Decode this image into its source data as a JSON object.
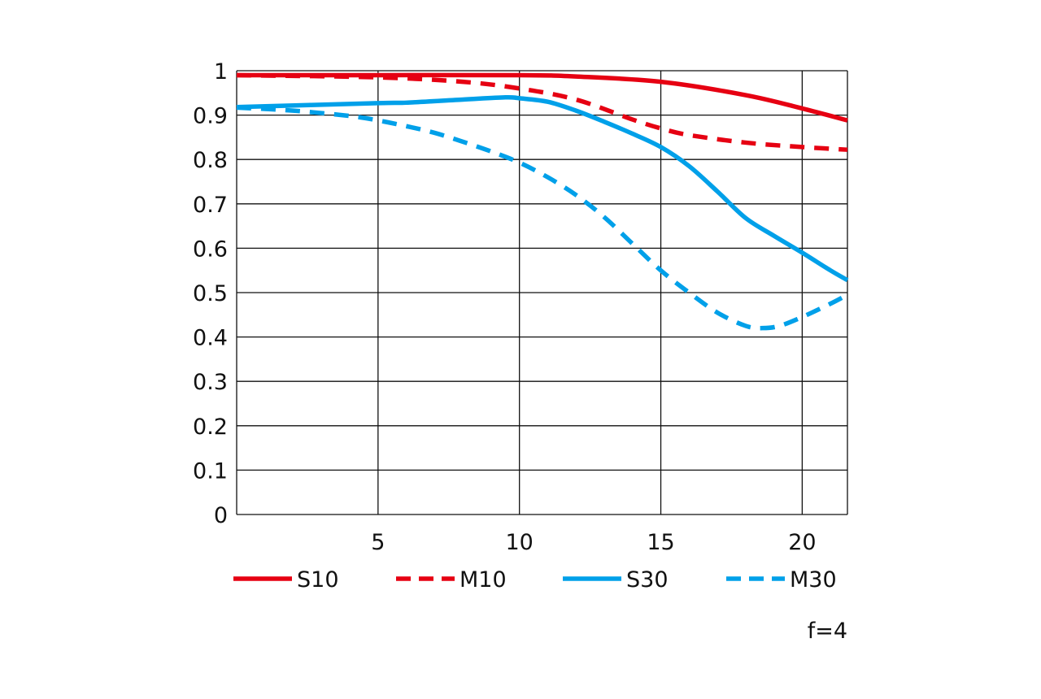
{
  "chart_data": {
    "type": "line",
    "title": "",
    "annotation": "f=4",
    "xlim": [
      0,
      21.6
    ],
    "ylim": [
      0,
      1
    ],
    "grid": true,
    "legend_position": "bottom",
    "x_ticks": [
      5,
      10,
      15,
      20
    ],
    "x_tick_labels": [
      "5",
      "10",
      "15",
      "20"
    ],
    "y_ticks": [
      0,
      0.1,
      0.2,
      0.3,
      0.4,
      0.5,
      0.6,
      0.7,
      0.8,
      0.9,
      1
    ],
    "y_tick_labels": [
      "0",
      "0.1",
      "0.2",
      "0.3",
      "0.4",
      "0.5",
      "0.6",
      "0.7",
      "0.8",
      "0.9",
      "1"
    ],
    "series": [
      {
        "name": "S10",
        "color": "#e60012",
        "dashed": false,
        "x": [
          0,
          5,
          10,
          12,
          15,
          18,
          20,
          21.6
        ],
        "y": [
          0.99,
          0.99,
          0.99,
          0.987,
          0.975,
          0.945,
          0.915,
          0.888
        ]
      },
      {
        "name": "M10",
        "color": "#e60012",
        "dashed": true,
        "x": [
          0,
          5,
          8,
          10,
          12,
          14,
          15,
          16,
          18,
          20,
          21.6
        ],
        "y": [
          0.99,
          0.985,
          0.975,
          0.96,
          0.935,
          0.89,
          0.87,
          0.855,
          0.838,
          0.828,
          0.822
        ]
      },
      {
        "name": "S30",
        "color": "#00a0e9",
        "dashed": false,
        "x": [
          0,
          5,
          6,
          8,
          9.5,
          10,
          11,
          12,
          13,
          14,
          15,
          16,
          17,
          18,
          19,
          20,
          21,
          21.6
        ],
        "y": [
          0.918,
          0.927,
          0.928,
          0.935,
          0.94,
          0.938,
          0.93,
          0.91,
          0.885,
          0.858,
          0.828,
          0.785,
          0.728,
          0.668,
          0.628,
          0.59,
          0.55,
          0.528
        ]
      },
      {
        "name": "M30",
        "color": "#00a0e9",
        "dashed": true,
        "x": [
          0,
          2,
          4,
          5,
          6,
          7,
          8,
          9,
          10,
          11,
          12,
          13,
          14,
          15,
          16,
          17,
          18,
          18.6,
          19.2,
          20,
          21,
          21.6
        ],
        "y": [
          0.917,
          0.91,
          0.898,
          0.888,
          0.875,
          0.86,
          0.84,
          0.818,
          0.793,
          0.76,
          0.72,
          0.67,
          0.61,
          0.55,
          0.5,
          0.455,
          0.425,
          0.42,
          0.425,
          0.445,
          0.475,
          0.495
        ]
      }
    ]
  }
}
